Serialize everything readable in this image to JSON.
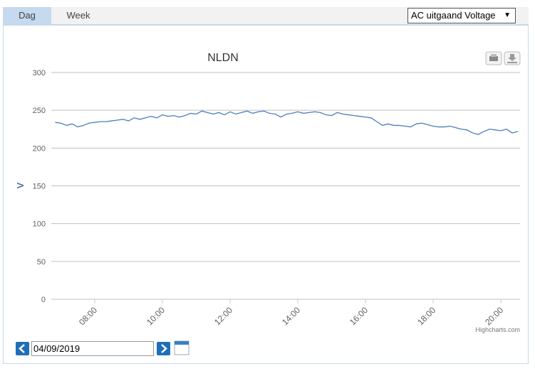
{
  "tabs": [
    "Dag",
    "Week"
  ],
  "dropdown": "AC uitgaand Voltage",
  "date": "04/09/2019",
  "chart_data": {
    "type": "line",
    "title": "NLDN",
    "y_label": "V",
    "credit": "Highcharts.com",
    "color": "#4a7ebb",
    "grid": true,
    "x": [
      "06:50",
      "07:00",
      "07:10",
      "07:20",
      "07:30",
      "07:40",
      "07:50",
      "08:00",
      "08:10",
      "08:20",
      "08:30",
      "08:40",
      "08:50",
      "09:00",
      "09:10",
      "09:20",
      "09:30",
      "09:40",
      "09:50",
      "10:00",
      "10:10",
      "10:20",
      "10:30",
      "10:40",
      "10:50",
      "11:00",
      "11:10",
      "11:20",
      "11:30",
      "11:40",
      "11:50",
      "12:00",
      "12:10",
      "12:20",
      "12:30",
      "12:40",
      "12:50",
      "13:00",
      "13:10",
      "13:20",
      "13:30",
      "13:40",
      "13:50",
      "14:00",
      "14:10",
      "14:20",
      "14:30",
      "14:40",
      "14:50",
      "15:00",
      "15:10",
      "15:20",
      "15:30",
      "15:40",
      "15:50",
      "16:00",
      "16:10",
      "16:20",
      "16:30",
      "16:40",
      "16:50",
      "17:00",
      "17:10",
      "17:20",
      "17:30",
      "17:40",
      "17:50",
      "18:00",
      "18:10",
      "18:20",
      "18:30",
      "18:40",
      "18:50",
      "19:00",
      "19:10",
      "19:20",
      "19:30",
      "19:40",
      "19:50",
      "20:00",
      "20:10",
      "20:20",
      "20:30"
    ],
    "values": [
      234,
      233,
      230,
      232,
      228,
      230,
      233,
      234,
      235,
      235,
      236,
      237,
      238,
      236,
      240,
      238,
      240,
      242,
      240,
      244,
      242,
      243,
      241,
      243,
      246,
      245,
      249,
      247,
      245,
      247,
      244,
      248,
      245,
      247,
      249,
      246,
      248,
      249,
      246,
      245,
      241,
      245,
      246,
      248,
      246,
      247,
      248,
      247,
      244,
      243,
      247,
      245,
      244,
      243,
      242,
      241,
      240,
      235,
      230,
      232,
      230,
      230,
      229,
      228,
      232,
      233,
      231,
      229,
      228,
      228,
      229,
      227,
      225,
      224,
      220,
      218,
      222,
      225,
      224,
      223,
      225,
      220,
      222
    ],
    "xlim": [
      "06:43",
      "20:34"
    ],
    "xticks": [
      "08:00",
      "10:00",
      "12:00",
      "14:00",
      "16:00",
      "18:00",
      "20:00"
    ],
    "ylim": [
      0,
      300
    ],
    "yticks": [
      0,
      50,
      100,
      150,
      200,
      250,
      300
    ]
  }
}
